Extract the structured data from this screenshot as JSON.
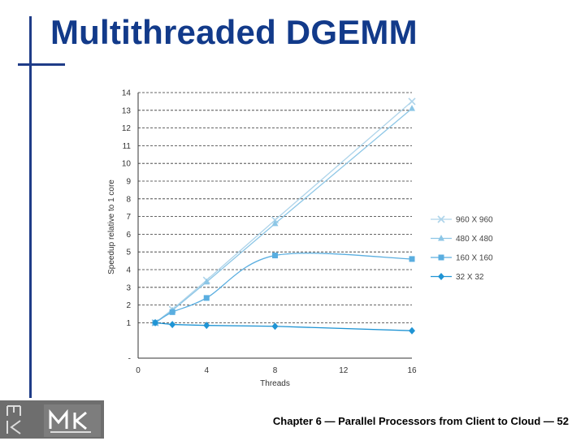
{
  "slide": {
    "title": "Multithreaded DGEMM",
    "footer": "Chapter 6 — Parallel Processors from Client to Cloud — 52"
  },
  "colors": {
    "title": "#123a8a",
    "accent_line": "#1f3c88",
    "series_960": "#aed4ea",
    "series_480": "#8cc6e6",
    "series_160": "#5aaee0",
    "series_32": "#1f94d4",
    "logo_bg": "#6e6e6e"
  },
  "icons": {
    "logo": "mk-publisher-logo"
  },
  "chart_data": {
    "type": "line",
    "xlabel": "Threads",
    "ylabel": "Speedup relative to 1 core",
    "xlim": [
      0,
      16
    ],
    "ylim": [
      -1,
      14
    ],
    "x_ticks": [
      0,
      4,
      8,
      12,
      16
    ],
    "y_ticks": [
      -1,
      1,
      2,
      3,
      4,
      5,
      6,
      7,
      8,
      9,
      10,
      11,
      12,
      13,
      14
    ],
    "y_tick_labels": [
      "-",
      "1",
      "2",
      "3",
      "4",
      "5",
      "6",
      "7",
      "8",
      "9",
      "10",
      "11",
      "12",
      "13",
      "14"
    ],
    "grid": "horizontal-dashed",
    "legend_position": "right",
    "series": [
      {
        "name": "960 X 960",
        "marker": "x",
        "x": [
          1,
          2,
          4,
          8,
          16
        ],
        "y": [
          1.0,
          1.75,
          3.4,
          6.8,
          13.5
        ]
      },
      {
        "name": "480 X 480",
        "marker": "triangle",
        "x": [
          1,
          2,
          4,
          8,
          16
        ],
        "y": [
          1.0,
          1.7,
          3.3,
          6.6,
          13.1
        ]
      },
      {
        "name": "160 X 160",
        "marker": "square",
        "x": [
          1,
          2,
          4,
          8,
          16
        ],
        "y": [
          1.0,
          1.6,
          2.4,
          4.8,
          4.6
        ]
      },
      {
        "name": "32 X 32",
        "marker": "diamond",
        "x": [
          1,
          2,
          4,
          8,
          16
        ],
        "y": [
          1.0,
          0.9,
          0.85,
          0.8,
          0.55
        ]
      }
    ]
  }
}
